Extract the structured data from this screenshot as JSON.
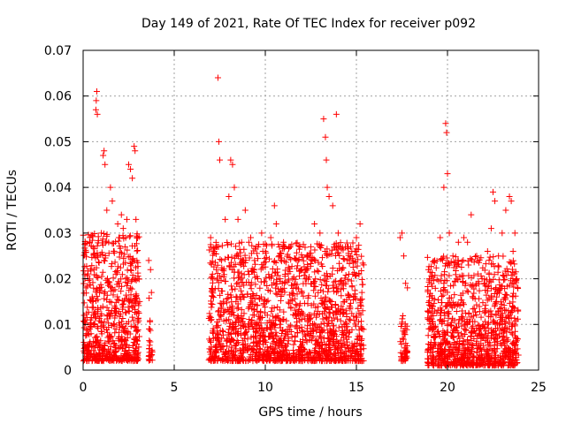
{
  "chart_data": {
    "type": "scatter",
    "title": "Day 149 of 2021, Rate Of TEC Index for receiver p092",
    "xlabel": "GPS time / hours",
    "ylabel": "ROTI / TECUs",
    "xlim": [
      0,
      25
    ],
    "ylim": [
      0,
      0.07
    ],
    "x_ticks": [
      0,
      5,
      10,
      15,
      20,
      25
    ],
    "x_tick_labels": [
      "0",
      "5",
      "10",
      "15",
      "20",
      "25"
    ],
    "y_ticks": [
      0,
      0.01,
      0.02,
      0.03,
      0.04,
      0.05,
      0.06,
      0.07
    ],
    "y_tick_labels": [
      "0",
      "0.01",
      "0.02",
      "0.03",
      "0.04",
      "0.05",
      "0.06",
      "0.07"
    ],
    "grid": true,
    "marker": "+",
    "color": "#ff0000",
    "series": [
      {
        "name": "ROTI",
        "points": [
          [
            0.05,
            0.012
          ],
          [
            0.1,
            0.02
          ],
          [
            0.15,
            0.018
          ],
          [
            0.2,
            0.008
          ],
          [
            0.3,
            0.005
          ],
          [
            0.4,
            0.011
          ],
          [
            0.5,
            0.015
          ],
          [
            0.6,
            0.022
          ],
          [
            0.7,
            0.057
          ],
          [
            0.72,
            0.059
          ],
          [
            0.75,
            0.061
          ],
          [
            0.78,
            0.056
          ],
          [
            0.8,
            0.025
          ],
          [
            0.9,
            0.017
          ],
          [
            1.0,
            0.03
          ],
          [
            1.1,
            0.047
          ],
          [
            1.15,
            0.048
          ],
          [
            1.2,
            0.045
          ],
          [
            1.3,
            0.035
          ],
          [
            1.4,
            0.028
          ],
          [
            1.5,
            0.04
          ],
          [
            1.6,
            0.037
          ],
          [
            1.7,
            0.026
          ],
          [
            1.8,
            0.021
          ],
          [
            1.9,
            0.032
          ],
          [
            2.0,
            0.029
          ],
          [
            2.1,
            0.034
          ],
          [
            2.2,
            0.031
          ],
          [
            2.3,
            0.027
          ],
          [
            2.4,
            0.033
          ],
          [
            2.5,
            0.045
          ],
          [
            2.6,
            0.044
          ],
          [
            2.7,
            0.042
          ],
          [
            2.8,
            0.049
          ],
          [
            2.85,
            0.048
          ],
          [
            2.9,
            0.033
          ],
          [
            3.0,
            0.02
          ],
          [
            3.1,
            0.015
          ],
          [
            3.6,
            0.024
          ],
          [
            3.7,
            0.022
          ],
          [
            3.75,
            0.017
          ],
          [
            3.8,
            0.004
          ],
          [
            7.0,
            0.029
          ],
          [
            7.1,
            0.021
          ],
          [
            7.2,
            0.026
          ],
          [
            7.4,
            0.064
          ],
          [
            7.45,
            0.05
          ],
          [
            7.5,
            0.046
          ],
          [
            7.6,
            0.024
          ],
          [
            7.8,
            0.033
          ],
          [
            8.0,
            0.038
          ],
          [
            8.1,
            0.046
          ],
          [
            8.2,
            0.045
          ],
          [
            8.3,
            0.04
          ],
          [
            8.5,
            0.033
          ],
          [
            8.7,
            0.028
          ],
          [
            8.9,
            0.035
          ],
          [
            9.2,
            0.029
          ],
          [
            9.5,
            0.027
          ],
          [
            9.8,
            0.03
          ],
          [
            10.0,
            0.026
          ],
          [
            10.3,
            0.029
          ],
          [
            10.5,
            0.036
          ],
          [
            10.6,
            0.032
          ],
          [
            10.8,
            0.02
          ],
          [
            11.0,
            0.028
          ],
          [
            11.3,
            0.027
          ],
          [
            11.5,
            0.02
          ],
          [
            11.8,
            0.024
          ],
          [
            12.0,
            0.022
          ],
          [
            12.3,
            0.025
          ],
          [
            12.5,
            0.027
          ],
          [
            12.7,
            0.032
          ],
          [
            13.0,
            0.03
          ],
          [
            13.2,
            0.055
          ],
          [
            13.3,
            0.051
          ],
          [
            13.35,
            0.046
          ],
          [
            13.4,
            0.04
          ],
          [
            13.5,
            0.038
          ],
          [
            13.7,
            0.036
          ],
          [
            13.9,
            0.056
          ],
          [
            14.0,
            0.03
          ],
          [
            14.2,
            0.022
          ],
          [
            14.5,
            0.024
          ],
          [
            14.8,
            0.021
          ],
          [
            15.0,
            0.029
          ],
          [
            15.2,
            0.032
          ],
          [
            15.3,
            0.017
          ],
          [
            17.4,
            0.029
          ],
          [
            17.5,
            0.03
          ],
          [
            17.6,
            0.025
          ],
          [
            17.7,
            0.019
          ],
          [
            17.8,
            0.018
          ],
          [
            19.0,
            0.02
          ],
          [
            19.3,
            0.024
          ],
          [
            19.6,
            0.029
          ],
          [
            19.8,
            0.04
          ],
          [
            19.9,
            0.054
          ],
          [
            19.95,
            0.052
          ],
          [
            20.0,
            0.043
          ],
          [
            20.1,
            0.03
          ],
          [
            20.3,
            0.025
          ],
          [
            20.6,
            0.028
          ],
          [
            20.9,
            0.029
          ],
          [
            21.1,
            0.028
          ],
          [
            21.3,
            0.034
          ],
          [
            21.6,
            0.025
          ],
          [
            21.9,
            0.02
          ],
          [
            22.2,
            0.026
          ],
          [
            22.4,
            0.031
          ],
          [
            22.5,
            0.039
          ],
          [
            22.6,
            0.037
          ],
          [
            22.8,
            0.025
          ],
          [
            23.0,
            0.03
          ],
          [
            23.2,
            0.035
          ],
          [
            23.4,
            0.038
          ],
          [
            23.5,
            0.037
          ],
          [
            23.6,
            0.026
          ],
          [
            23.7,
            0.03
          ],
          [
            23.8,
            0.02
          ]
        ],
        "dense_segments": [
          {
            "x_range": [
              0.0,
              3.1
            ],
            "y_range": [
              0.002,
              0.03
            ],
            "count": 650
          },
          {
            "x_range": [
              3.6,
              3.8
            ],
            "y_range": [
              0.002,
              0.018
            ],
            "count": 25
          },
          {
            "x_range": [
              6.9,
              15.4
            ],
            "y_range": [
              0.002,
              0.028
            ],
            "count": 1600
          },
          {
            "x_range": [
              17.4,
              17.8
            ],
            "y_range": [
              0.002,
              0.012
            ],
            "count": 50
          },
          {
            "x_range": [
              18.9,
              23.9
            ],
            "y_range": [
              0.001,
              0.025
            ],
            "count": 1000
          }
        ]
      }
    ]
  }
}
